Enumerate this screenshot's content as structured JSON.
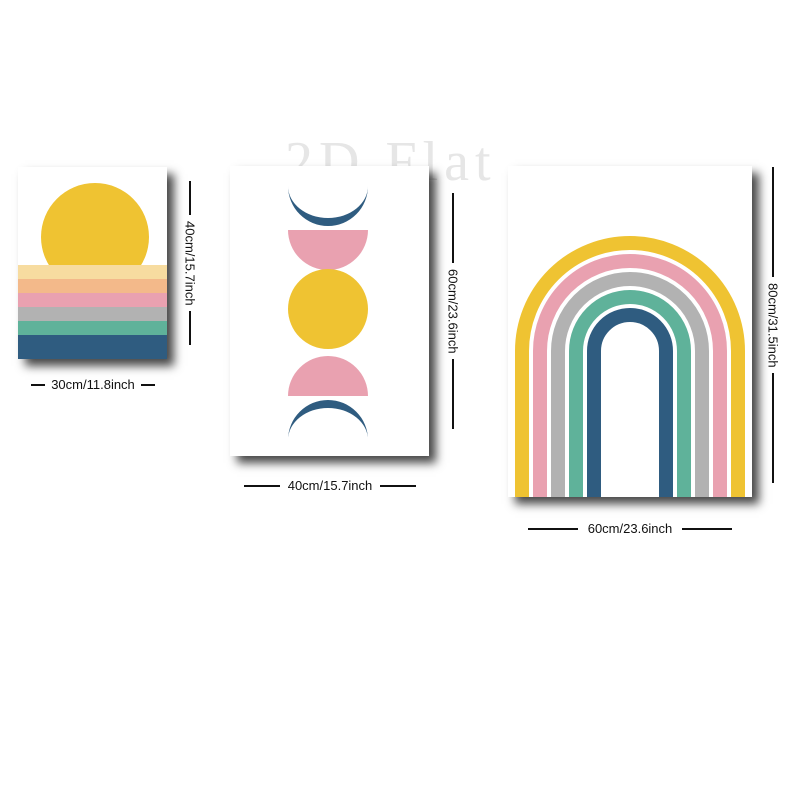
{
  "watermark": "2D Flat",
  "colors": {
    "yellow": "#efc332",
    "pink": "#e9a1b0",
    "grey": "#b2b2b2",
    "green": "#5fb29a",
    "navy": "#2f5c80",
    "cream": "#f7dca0",
    "peach": "#f3b98a"
  },
  "posters": {
    "small": {
      "width_label": "30cm/11.8inch",
      "height_label": "40cm/15.7inch"
    },
    "medium": {
      "width_label": "40cm/15.7inch",
      "height_label": "60cm/23.6inch"
    },
    "large": {
      "width_label": "60cm/23.6inch",
      "height_label": "80cm/31.5inch"
    }
  }
}
